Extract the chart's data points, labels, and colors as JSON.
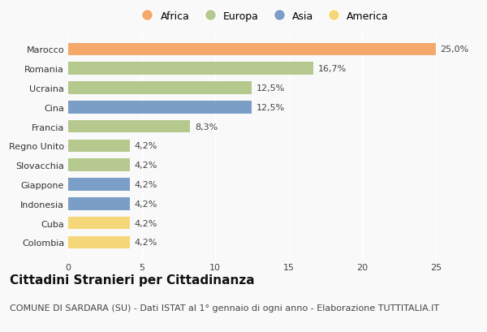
{
  "countries": [
    "Marocco",
    "Romania",
    "Ucraina",
    "Cina",
    "Francia",
    "Regno Unito",
    "Slovacchia",
    "Giappone",
    "Indonesia",
    "Cuba",
    "Colombia"
  ],
  "values": [
    25.0,
    16.7,
    12.5,
    12.5,
    8.3,
    4.2,
    4.2,
    4.2,
    4.2,
    4.2,
    4.2
  ],
  "labels": [
    "25,0%",
    "16,7%",
    "12,5%",
    "12,5%",
    "8,3%",
    "4,2%",
    "4,2%",
    "4,2%",
    "4,2%",
    "4,2%",
    "4,2%"
  ],
  "continents": [
    "Africa",
    "Europa",
    "Europa",
    "Asia",
    "Europa",
    "Europa",
    "Europa",
    "Asia",
    "Asia",
    "America",
    "America"
  ],
  "colors": {
    "Africa": "#F4A96A",
    "Europa": "#B5C98E",
    "Asia": "#7B9EC7",
    "America": "#F5D77A"
  },
  "legend_order": [
    "Africa",
    "Europa",
    "Asia",
    "America"
  ],
  "xlim": [
    0,
    26.5
  ],
  "xticks": [
    0,
    5,
    10,
    15,
    20,
    25
  ],
  "title": "Cittadini Stranieri per Cittadinanza",
  "subtitle": "COMUNE DI SARDARA (SU) - Dati ISTAT al 1° gennaio di ogni anno - Elaborazione TUTTITALIA.IT",
  "background_color": "#f9f9f9",
  "bar_height": 0.65,
  "title_fontsize": 11,
  "subtitle_fontsize": 8,
  "label_fontsize": 8,
  "tick_fontsize": 8,
  "legend_fontsize": 9
}
